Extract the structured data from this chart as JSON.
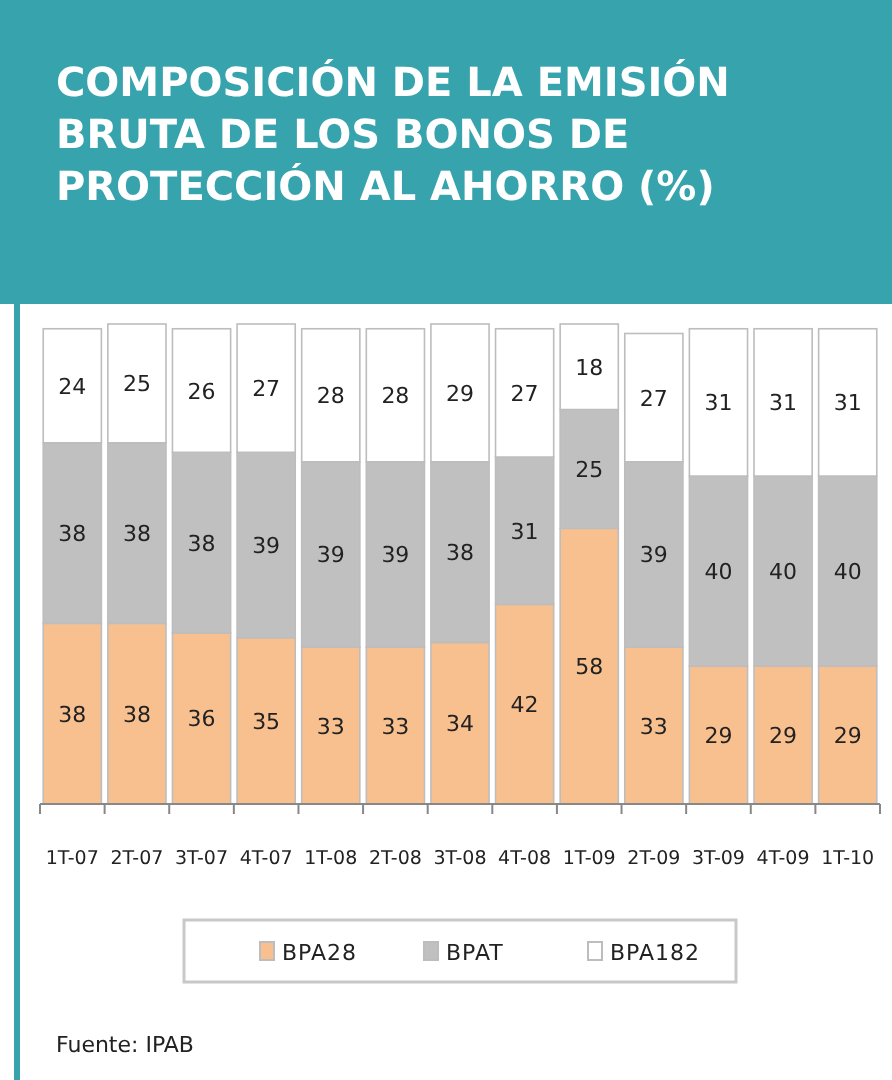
{
  "chart_data": {
    "type": "bar",
    "title": "COMPOSICIÓN DE LA EMISIÓN BRUTA DE LOS BONOS DE PROTECCIÓN AL AHORRO (%)",
    "categories": [
      "1T-07",
      "2T-07",
      "3T-07",
      "4T-07",
      "1T-08",
      "2T-08",
      "3T-08",
      "4T-08",
      "1T-09",
      "2T-09",
      "3T-09",
      "4T-09",
      "1T-10"
    ],
    "stacked": true,
    "data_labels": true,
    "legend": "bottom",
    "annotations": [
      "Fuente: IPAB"
    ],
    "series": [
      {
        "name": "BPA28",
        "color": "#f9c08f",
        "values": [
          38,
          38,
          36,
          35,
          33,
          33,
          34,
          42,
          58,
          33,
          29,
          29,
          29
        ]
      },
      {
        "name": "BPAT",
        "color": "#c0c0c0",
        "values": [
          38,
          38,
          38,
          39,
          39,
          39,
          38,
          31,
          25,
          39,
          40,
          40,
          40
        ]
      },
      {
        "name": "BPA182",
        "color": "#ffffff",
        "values": [
          24,
          25,
          26,
          27,
          28,
          28,
          29,
          27,
          18,
          27,
          31,
          31,
          31
        ]
      }
    ]
  }
}
